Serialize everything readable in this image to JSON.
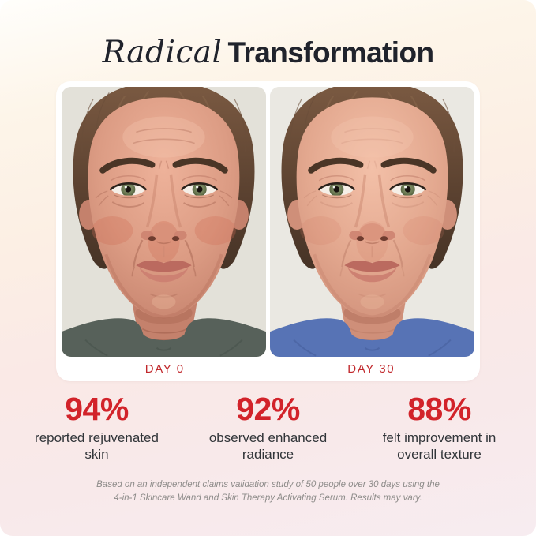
{
  "title": {
    "accent": "Radical",
    "main": "Transformation"
  },
  "comparison": {
    "before_label": "DAY 0",
    "after_label": "DAY 30",
    "photos": {
      "before": {
        "description": "close-up of woman's face before treatment, day 0",
        "backdrop": "#e3e1d9",
        "shirt": "#57615a",
        "shirt_fold": "#3f4a43",
        "wrinkle_level": 1,
        "skin": [
          "#eeb29a",
          "#dc9c84",
          "#c4816c"
        ],
        "flush": "#cf6d55",
        "flush_opacity": 0.3
      },
      "after": {
        "description": "close-up of woman's face after treatment, day 30",
        "backdrop": "#eae8e2",
        "shirt": "#5773b5",
        "shirt_fold": "#3e5590",
        "wrinkle_level": 0.4,
        "skin": [
          "#f3c0a8",
          "#e3a88f",
          "#cf8f79"
        ],
        "flush": "#d27a63",
        "flush_opacity": 0.18
      }
    }
  },
  "stats": [
    {
      "value": "94%",
      "description": "reported rejuvenated skin"
    },
    {
      "value": "92%",
      "description": "observed enhanced radiance"
    },
    {
      "value": "88%",
      "description": "felt improvement in overall texture"
    }
  ],
  "disclaimer": {
    "line1": "Based on an independent claims validation study of 50 people over 30 days using the",
    "line2": "4-in-1 Skincare Wand and Skin Therapy Activating Serum. Results may vary."
  },
  "colors": {
    "accent_red": "#d2232a",
    "day_label_red": "#c1282c",
    "title_dark": "#20232c"
  }
}
